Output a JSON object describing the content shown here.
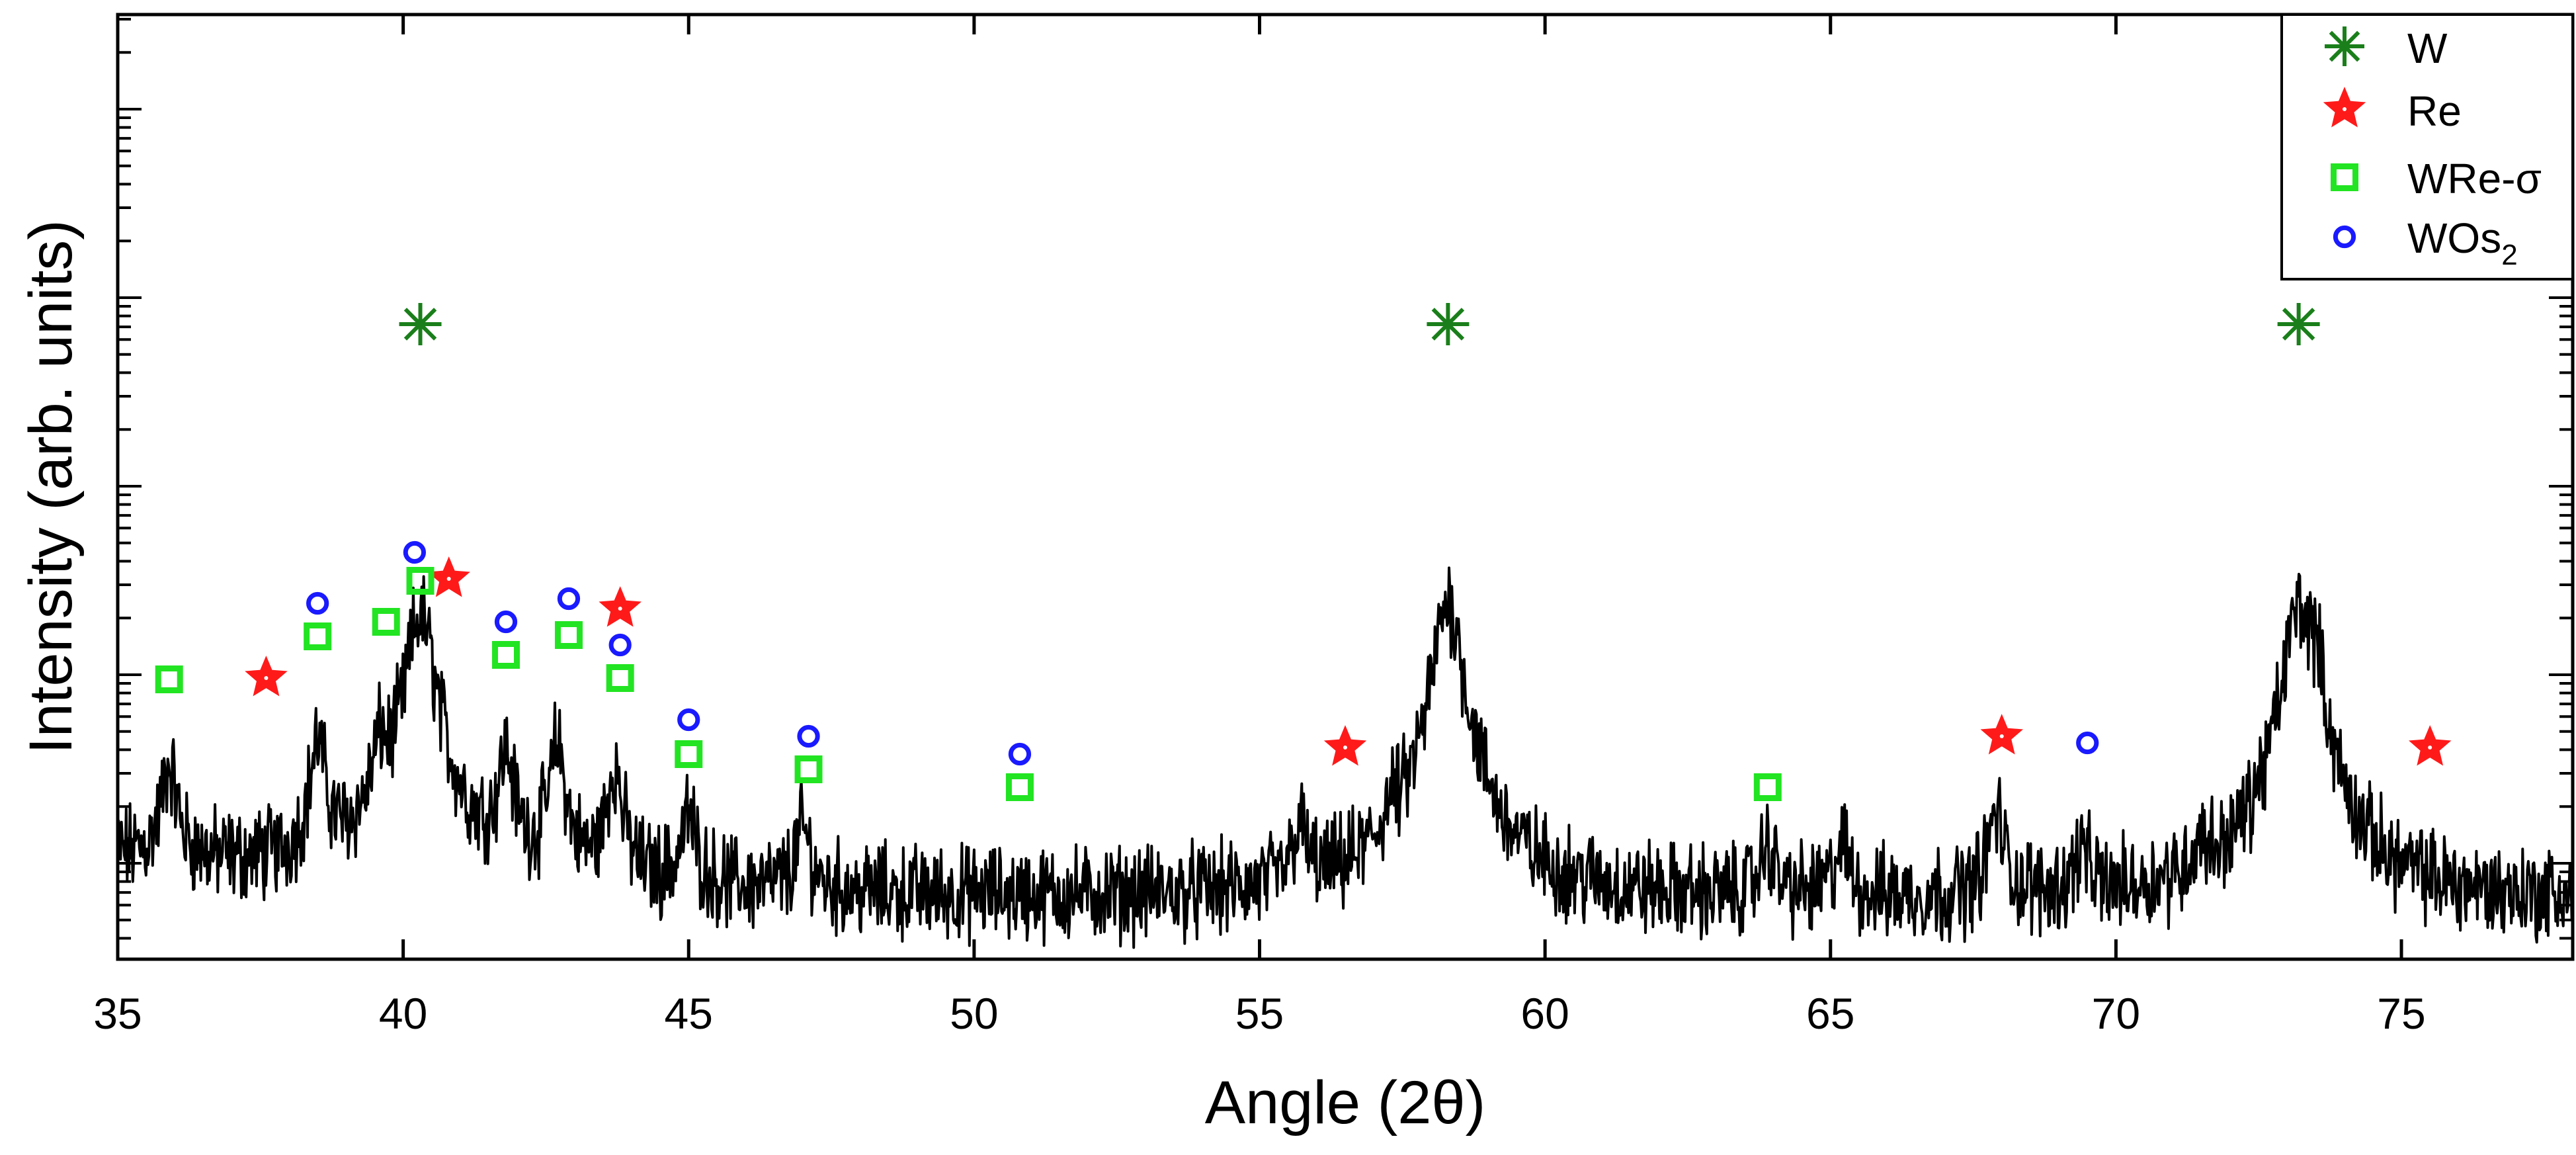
{
  "chart_data": {
    "type": "line",
    "xlabel": "Angle (2θ)",
    "ylabel": "Intensity (arb. units)",
    "xlim": [
      35,
      78
    ],
    "x_ticks": [
      35,
      40,
      45,
      50,
      55,
      60,
      65,
      70,
      75
    ],
    "y_scale": "log",
    "y_tick_labels": "none",
    "grid": false,
    "legend_position": "top-right",
    "line_color": "#000000",
    "peaks": [
      {
        "x": 35.9,
        "y": 0.22
      },
      {
        "x": 38.5,
        "y": 0.33
      },
      {
        "x": 39.6,
        "y": 0.24
      },
      {
        "x": 40.3,
        "y": 2.0
      },
      {
        "x": 41.8,
        "y": 0.28
      },
      {
        "x": 42.7,
        "y": 0.33
      },
      {
        "x": 43.7,
        "y": 0.24
      },
      {
        "x": 45.0,
        "y": 0.1
      },
      {
        "x": 47.0,
        "y": 0.08
      },
      {
        "x": 55.7,
        "y": 0.08
      },
      {
        "x": 57.3,
        "y": 0.06
      },
      {
        "x": 58.3,
        "y": 2.4
      },
      {
        "x": 63.9,
        "y": 0.06
      },
      {
        "x": 65.2,
        "y": 0.06
      },
      {
        "x": 67.9,
        "y": 0.12
      },
      {
        "x": 69.4,
        "y": 0.05
      },
      {
        "x": 71.5,
        "y": 0.04
      },
      {
        "x": 73.2,
        "y": 2.2
      },
      {
        "x": 73.5,
        "y": 0.8
      }
    ],
    "legend": [
      {
        "label": "W",
        "marker": "asterisk",
        "color": "#1a7f1a"
      },
      {
        "label": "Re",
        "marker": "star",
        "color": "#ff1a1a"
      },
      {
        "label": "WRe-σ",
        "marker": "square",
        "color": "#22e422"
      },
      {
        "label": "WOs",
        "label_sub": "2",
        "marker": "circle",
        "color": "#1a1aff"
      }
    ],
    "phase_markers": [
      {
        "phase": "W",
        "positions": [
          40.3,
          58.3,
          73.2
        ]
      },
      {
        "phase": "Re",
        "positions": [
          37.6,
          40.8,
          43.8,
          56.5,
          68.0,
          75.5
        ]
      },
      {
        "phase": "WRe-σ",
        "positions": [
          35.9,
          38.5,
          39.7,
          40.3,
          41.8,
          42.9,
          43.8,
          45.0,
          47.1,
          50.8,
          63.9
        ]
      },
      {
        "phase": "WOs2",
        "positions": [
          38.5,
          40.2,
          41.8,
          42.9,
          43.8,
          45.0,
          47.1,
          50.8,
          69.5
        ]
      }
    ]
  }
}
